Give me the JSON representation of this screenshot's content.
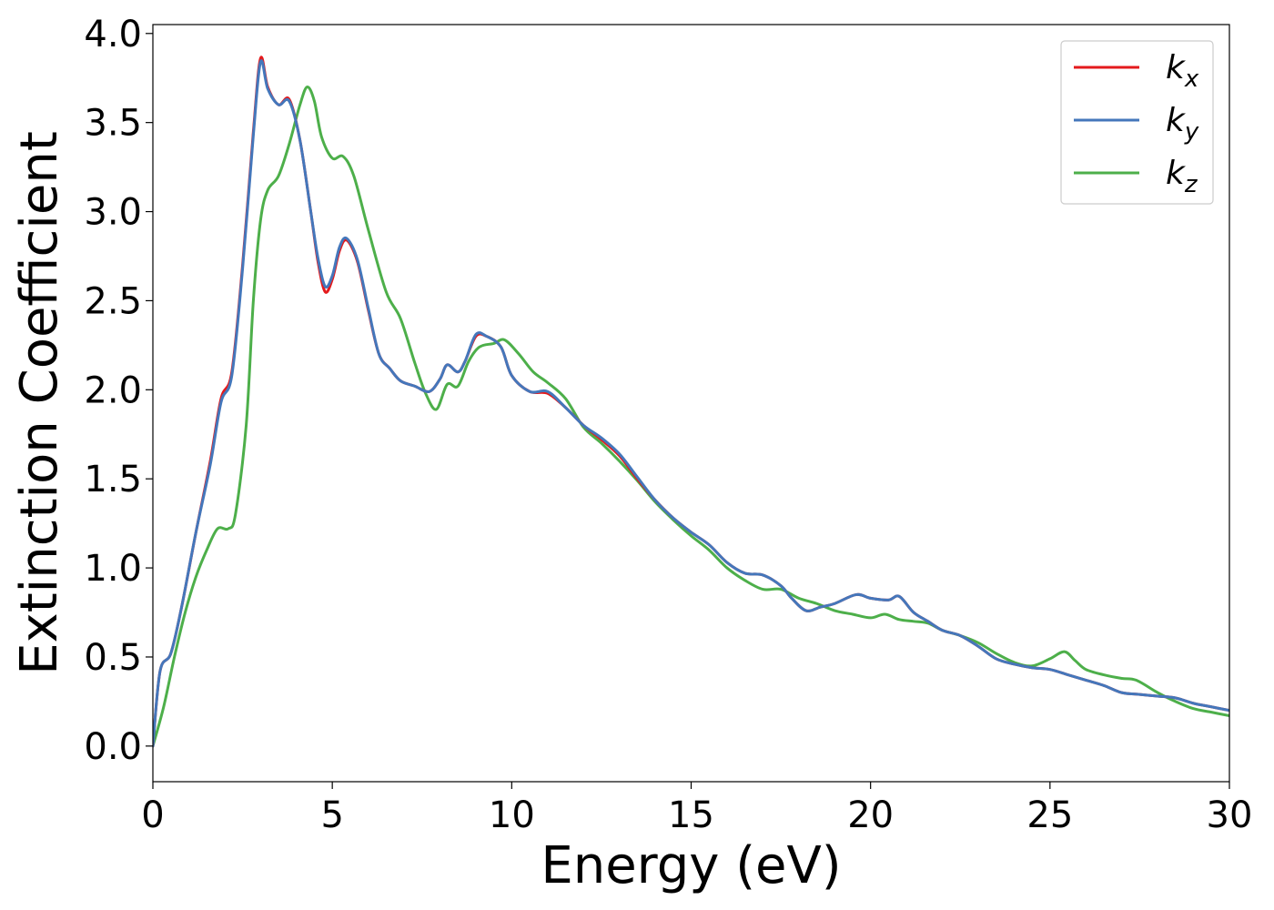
{
  "chart_data": {
    "type": "line",
    "xlabel": "Energy (eV)",
    "ylabel": "Extinction Coefficient",
    "xlim": [
      0,
      30
    ],
    "ylim": [
      -0.2,
      4.05
    ],
    "xticks": [
      0,
      5,
      10,
      15,
      20,
      25,
      30
    ],
    "xtick_labels": [
      "0",
      "5",
      "10",
      "15",
      "20",
      "25",
      "30"
    ],
    "yticks": [
      0.0,
      0.5,
      1.0,
      1.5,
      2.0,
      2.5,
      3.0,
      3.5,
      4.0
    ],
    "ytick_labels": [
      "0.0",
      "0.5",
      "1.0",
      "1.5",
      "2.0",
      "2.5",
      "3.0",
      "3.5",
      "4.0"
    ],
    "grid": false,
    "legend_position": "top-right",
    "series": [
      {
        "name": "k_x",
        "base": "k",
        "sub": "x",
        "color": "#e41a1c",
        "points": [
          [
            0,
            0.0
          ],
          [
            0.2,
            0.42
          ],
          [
            0.5,
            0.52
          ],
          [
            0.8,
            0.78
          ],
          [
            1.2,
            1.2
          ],
          [
            1.6,
            1.6
          ],
          [
            1.9,
            1.95
          ],
          [
            2.2,
            2.1
          ],
          [
            2.5,
            2.7
          ],
          [
            2.8,
            3.45
          ],
          [
            3.0,
            3.86
          ],
          [
            3.2,
            3.7
          ],
          [
            3.5,
            3.6
          ],
          [
            3.8,
            3.63
          ],
          [
            4.1,
            3.4
          ],
          [
            4.4,
            3.0
          ],
          [
            4.6,
            2.72
          ],
          [
            4.8,
            2.55
          ],
          [
            5.0,
            2.62
          ],
          [
            5.2,
            2.78
          ],
          [
            5.4,
            2.84
          ],
          [
            5.7,
            2.72
          ],
          [
            6.0,
            2.45
          ],
          [
            6.3,
            2.2
          ],
          [
            6.6,
            2.12
          ],
          [
            6.9,
            2.05
          ],
          [
            7.3,
            2.02
          ],
          [
            7.7,
            1.99
          ],
          [
            8.0,
            2.06
          ],
          [
            8.2,
            2.14
          ],
          [
            8.5,
            2.1
          ],
          [
            8.7,
            2.16
          ],
          [
            9.0,
            2.3
          ],
          [
            9.3,
            2.3
          ],
          [
            9.7,
            2.24
          ],
          [
            10.0,
            2.08
          ],
          [
            10.5,
            1.99
          ],
          [
            11.0,
            1.98
          ],
          [
            11.5,
            1.9
          ],
          [
            12.0,
            1.8
          ],
          [
            12.5,
            1.72
          ],
          [
            13.0,
            1.63
          ],
          [
            13.5,
            1.5
          ],
          [
            14.0,
            1.38
          ],
          [
            14.5,
            1.28
          ],
          [
            15.0,
            1.2
          ],
          [
            15.5,
            1.13
          ],
          [
            16.0,
            1.03
          ],
          [
            16.5,
            0.97
          ],
          [
            17.0,
            0.96
          ],
          [
            17.5,
            0.9
          ],
          [
            17.8,
            0.83
          ],
          [
            18.2,
            0.76
          ],
          [
            18.6,
            0.78
          ],
          [
            19.0,
            0.8
          ],
          [
            19.6,
            0.85
          ],
          [
            20.0,
            0.83
          ],
          [
            20.5,
            0.82
          ],
          [
            20.8,
            0.84
          ],
          [
            21.2,
            0.75
          ],
          [
            21.6,
            0.7
          ],
          [
            22.0,
            0.65
          ],
          [
            22.5,
            0.62
          ],
          [
            23.0,
            0.56
          ],
          [
            23.5,
            0.49
          ],
          [
            24.0,
            0.46
          ],
          [
            24.5,
            0.44
          ],
          [
            25.0,
            0.43
          ],
          [
            25.5,
            0.4
          ],
          [
            26.0,
            0.37
          ],
          [
            26.5,
            0.34
          ],
          [
            27.0,
            0.3
          ],
          [
            27.5,
            0.29
          ],
          [
            28.0,
            0.28
          ],
          [
            28.5,
            0.27
          ],
          [
            29.0,
            0.24
          ],
          [
            29.5,
            0.22
          ],
          [
            30.0,
            0.2
          ]
        ]
      },
      {
        "name": "k_y",
        "base": "k",
        "sub": "y",
        "color": "#4477bb",
        "points": [
          [
            0,
            0.0
          ],
          [
            0.2,
            0.42
          ],
          [
            0.5,
            0.52
          ],
          [
            0.8,
            0.78
          ],
          [
            1.2,
            1.2
          ],
          [
            1.6,
            1.58
          ],
          [
            1.9,
            1.93
          ],
          [
            2.2,
            2.08
          ],
          [
            2.5,
            2.68
          ],
          [
            2.8,
            3.43
          ],
          [
            3.0,
            3.84
          ],
          [
            3.2,
            3.69
          ],
          [
            3.5,
            3.6
          ],
          [
            3.8,
            3.62
          ],
          [
            4.1,
            3.4
          ],
          [
            4.4,
            3.0
          ],
          [
            4.6,
            2.74
          ],
          [
            4.8,
            2.58
          ],
          [
            5.0,
            2.64
          ],
          [
            5.2,
            2.8
          ],
          [
            5.4,
            2.85
          ],
          [
            5.7,
            2.73
          ],
          [
            6.0,
            2.46
          ],
          [
            6.3,
            2.2
          ],
          [
            6.6,
            2.12
          ],
          [
            6.9,
            2.05
          ],
          [
            7.3,
            2.02
          ],
          [
            7.7,
            1.99
          ],
          [
            8.0,
            2.06
          ],
          [
            8.2,
            2.14
          ],
          [
            8.5,
            2.1
          ],
          [
            8.7,
            2.16
          ],
          [
            9.0,
            2.31
          ],
          [
            9.3,
            2.3
          ],
          [
            9.7,
            2.24
          ],
          [
            10.0,
            2.08
          ],
          [
            10.5,
            1.99
          ],
          [
            11.0,
            1.99
          ],
          [
            11.5,
            1.9
          ],
          [
            12.0,
            1.8
          ],
          [
            12.5,
            1.73
          ],
          [
            13.0,
            1.64
          ],
          [
            13.5,
            1.51
          ],
          [
            14.0,
            1.38
          ],
          [
            14.5,
            1.28
          ],
          [
            15.0,
            1.2
          ],
          [
            15.5,
            1.13
          ],
          [
            16.0,
            1.03
          ],
          [
            16.5,
            0.97
          ],
          [
            17.0,
            0.96
          ],
          [
            17.5,
            0.9
          ],
          [
            17.8,
            0.83
          ],
          [
            18.2,
            0.76
          ],
          [
            18.6,
            0.78
          ],
          [
            19.0,
            0.8
          ],
          [
            19.6,
            0.85
          ],
          [
            20.0,
            0.83
          ],
          [
            20.5,
            0.82
          ],
          [
            20.8,
            0.84
          ],
          [
            21.2,
            0.75
          ],
          [
            21.6,
            0.7
          ],
          [
            22.0,
            0.65
          ],
          [
            22.5,
            0.62
          ],
          [
            23.0,
            0.56
          ],
          [
            23.5,
            0.49
          ],
          [
            24.0,
            0.46
          ],
          [
            24.5,
            0.44
          ],
          [
            25.0,
            0.43
          ],
          [
            25.5,
            0.4
          ],
          [
            26.0,
            0.37
          ],
          [
            26.5,
            0.34
          ],
          [
            27.0,
            0.3
          ],
          [
            27.5,
            0.29
          ],
          [
            28.0,
            0.28
          ],
          [
            28.5,
            0.27
          ],
          [
            29.0,
            0.24
          ],
          [
            29.5,
            0.22
          ],
          [
            30.0,
            0.2
          ]
        ]
      },
      {
        "name": "k_z",
        "base": "k",
        "sub": "z",
        "color": "#4daf4a",
        "points": [
          [
            0,
            0.0
          ],
          [
            0.3,
            0.22
          ],
          [
            0.6,
            0.5
          ],
          [
            0.9,
            0.75
          ],
          [
            1.2,
            0.95
          ],
          [
            1.5,
            1.1
          ],
          [
            1.8,
            1.22
          ],
          [
            2.1,
            1.22
          ],
          [
            2.3,
            1.3
          ],
          [
            2.6,
            1.8
          ],
          [
            2.8,
            2.5
          ],
          [
            3.0,
            2.95
          ],
          [
            3.2,
            3.12
          ],
          [
            3.5,
            3.2
          ],
          [
            3.8,
            3.38
          ],
          [
            4.1,
            3.6
          ],
          [
            4.3,
            3.7
          ],
          [
            4.5,
            3.62
          ],
          [
            4.7,
            3.42
          ],
          [
            5.0,
            3.3
          ],
          [
            5.3,
            3.31
          ],
          [
            5.6,
            3.2
          ],
          [
            6.0,
            2.9
          ],
          [
            6.5,
            2.55
          ],
          [
            6.9,
            2.4
          ],
          [
            7.3,
            2.15
          ],
          [
            7.6,
            1.98
          ],
          [
            7.9,
            1.89
          ],
          [
            8.2,
            2.03
          ],
          [
            8.5,
            2.02
          ],
          [
            8.8,
            2.16
          ],
          [
            9.1,
            2.24
          ],
          [
            9.5,
            2.26
          ],
          [
            9.8,
            2.28
          ],
          [
            10.2,
            2.2
          ],
          [
            10.6,
            2.1
          ],
          [
            11.0,
            2.04
          ],
          [
            11.5,
            1.95
          ],
          [
            12.0,
            1.79
          ],
          [
            12.5,
            1.7
          ],
          [
            13.0,
            1.6
          ],
          [
            13.5,
            1.49
          ],
          [
            14.0,
            1.37
          ],
          [
            14.5,
            1.27
          ],
          [
            15.0,
            1.18
          ],
          [
            15.5,
            1.1
          ],
          [
            16.0,
            1.0
          ],
          [
            16.5,
            0.93
          ],
          [
            17.0,
            0.88
          ],
          [
            17.5,
            0.88
          ],
          [
            18.0,
            0.83
          ],
          [
            18.5,
            0.8
          ],
          [
            19.0,
            0.76
          ],
          [
            19.5,
            0.74
          ],
          [
            20.0,
            0.72
          ],
          [
            20.4,
            0.74
          ],
          [
            20.8,
            0.71
          ],
          [
            21.2,
            0.7
          ],
          [
            21.6,
            0.69
          ],
          [
            22.0,
            0.65
          ],
          [
            22.5,
            0.62
          ],
          [
            23.0,
            0.58
          ],
          [
            23.5,
            0.52
          ],
          [
            24.0,
            0.47
          ],
          [
            24.5,
            0.45
          ],
          [
            25.0,
            0.49
          ],
          [
            25.4,
            0.53
          ],
          [
            25.7,
            0.48
          ],
          [
            26.0,
            0.43
          ],
          [
            26.5,
            0.4
          ],
          [
            27.0,
            0.38
          ],
          [
            27.4,
            0.37
          ],
          [
            28.0,
            0.3
          ],
          [
            28.5,
            0.25
          ],
          [
            29.0,
            0.21
          ],
          [
            29.5,
            0.19
          ],
          [
            30.0,
            0.17
          ]
        ]
      }
    ]
  }
}
